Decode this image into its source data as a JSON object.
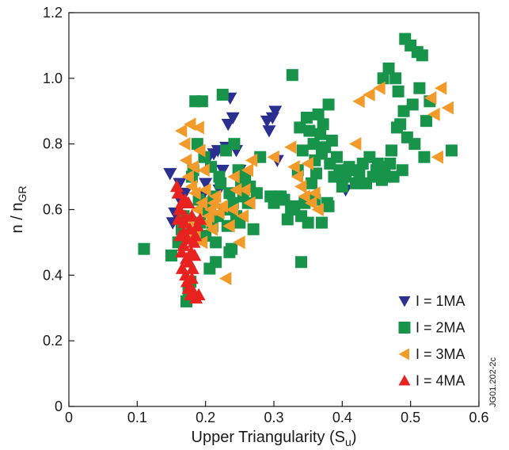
{
  "chart_data": {
    "type": "scatter",
    "xlabel": "Upper Triangularity (S",
    "xlabel_sub": "u",
    "xlabel_end": ")",
    "ylabel": "n / n",
    "ylabel_sub": "GR",
    "xlim": [
      0,
      0.6
    ],
    "ylim": [
      0,
      1.2
    ],
    "x_ticks": [
      "0",
      "0.1",
      "0.2",
      "0.3",
      "0.4",
      "0.5",
      "0.6"
    ],
    "y_ticks": [
      "0",
      "0.2",
      "0.4",
      "0.6",
      "0.8",
      "1.0",
      "1.2"
    ],
    "legend_position": "bottom-right",
    "side_label": "JG01.202-2c",
    "grid": false,
    "series": [
      {
        "name": "I = 1MA",
        "marker": "triangle-down",
        "color": "#2b2f8f",
        "points": [
          [
            0.148,
            0.71
          ],
          [
            0.152,
            0.56
          ],
          [
            0.155,
            0.59
          ],
          [
            0.162,
            0.68
          ],
          [
            0.165,
            0.62
          ],
          [
            0.17,
            0.65
          ],
          [
            0.195,
            0.64
          ],
          [
            0.2,
            0.68
          ],
          [
            0.205,
            0.76
          ],
          [
            0.212,
            0.77
          ],
          [
            0.218,
            0.78
          ],
          [
            0.22,
            0.66
          ],
          [
            0.225,
            0.72
          ],
          [
            0.23,
            0.79
          ],
          [
            0.233,
            0.86
          ],
          [
            0.236,
            0.94
          ],
          [
            0.24,
            0.88
          ],
          [
            0.245,
            0.78
          ],
          [
            0.25,
            0.72
          ],
          [
            0.255,
            0.65
          ],
          [
            0.29,
            0.87
          ],
          [
            0.293,
            0.84
          ],
          [
            0.298,
            0.88
          ],
          [
            0.302,
            0.9
          ],
          [
            0.305,
            0.75
          ],
          [
            0.405,
            0.66
          ]
        ]
      },
      {
        "name": "I = 2MA",
        "marker": "square",
        "color": "#17944a",
        "points": [
          [
            0.11,
            0.48
          ],
          [
            0.15,
            0.46
          ],
          [
            0.16,
            0.5
          ],
          [
            0.165,
            0.54
          ],
          [
            0.168,
            0.58
          ],
          [
            0.172,
            0.32
          ],
          [
            0.175,
            0.35
          ],
          [
            0.178,
            0.38
          ],
          [
            0.18,
            0.7
          ],
          [
            0.182,
            0.72
          ],
          [
            0.185,
            0.93
          ],
          [
            0.188,
            0.8
          ],
          [
            0.19,
            0.63
          ],
          [
            0.192,
            0.56
          ],
          [
            0.195,
            0.93
          ],
          [
            0.198,
            0.76
          ],
          [
            0.2,
            0.52
          ],
          [
            0.202,
            0.6
          ],
          [
            0.205,
            0.62
          ],
          [
            0.208,
            0.73
          ],
          [
            0.21,
            0.55
          ],
          [
            0.212,
            0.64
          ],
          [
            0.215,
            0.5
          ],
          [
            0.218,
            0.58
          ],
          [
            0.22,
            0.7
          ],
          [
            0.222,
            0.68
          ],
          [
            0.225,
            0.95
          ],
          [
            0.228,
            0.6
          ],
          [
            0.23,
            0.78
          ],
          [
            0.232,
            0.55
          ],
          [
            0.235,
            0.65
          ],
          [
            0.238,
            0.48
          ],
          [
            0.24,
            0.62
          ],
          [
            0.242,
            0.8
          ],
          [
            0.245,
            0.58
          ],
          [
            0.248,
            0.72
          ],
          [
            0.25,
            0.56
          ],
          [
            0.252,
            0.68
          ],
          [
            0.255,
            0.64
          ],
          [
            0.258,
            0.7
          ],
          [
            0.262,
            0.62
          ],
          [
            0.265,
            0.67
          ],
          [
            0.27,
            0.54
          ],
          [
            0.275,
            0.65
          ],
          [
            0.28,
            0.76
          ],
          [
            0.295,
            0.64
          ],
          [
            0.3,
            0.62
          ],
          [
            0.305,
            0.64
          ],
          [
            0.31,
            0.64
          ],
          [
            0.315,
            0.63
          ],
          [
            0.32,
            0.57
          ],
          [
            0.325,
            0.6
          ],
          [
            0.33,
            0.61
          ],
          [
            0.335,
            0.72
          ],
          [
            0.338,
            0.85
          ],
          [
            0.34,
            0.44
          ],
          [
            0.342,
            0.78
          ],
          [
            0.345,
            0.62
          ],
          [
            0.348,
            0.88
          ],
          [
            0.35,
            0.56
          ],
          [
            0.352,
            0.84
          ],
          [
            0.355,
            0.68
          ],
          [
            0.358,
            0.8
          ],
          [
            0.36,
            0.75
          ],
          [
            0.362,
            0.71
          ],
          [
            0.365,
            0.89
          ],
          [
            0.368,
            0.83
          ],
          [
            0.37,
            0.77
          ],
          [
            0.372,
            0.86
          ],
          [
            0.375,
            0.79
          ],
          [
            0.378,
            0.62
          ],
          [
            0.38,
            0.92
          ],
          [
            0.382,
            0.74
          ],
          [
            0.385,
            0.81
          ],
          [
            0.388,
            0.7
          ],
          [
            0.392,
            0.76
          ],
          [
            0.396,
            0.72
          ],
          [
            0.4,
            0.67
          ],
          [
            0.405,
            0.7
          ],
          [
            0.41,
            0.73
          ],
          [
            0.415,
            0.72
          ],
          [
            0.42,
            0.68
          ],
          [
            0.425,
            0.71
          ],
          [
            0.43,
            0.74
          ],
          [
            0.435,
            0.68
          ],
          [
            0.44,
            0.76
          ],
          [
            0.445,
            0.7
          ],
          [
            0.45,
            0.72
          ],
          [
            0.452,
            0.74
          ],
          [
            0.455,
            0.71
          ],
          [
            0.458,
            0.69
          ],
          [
            0.46,
            1.0
          ],
          [
            0.462,
            0.73
          ],
          [
            0.465,
            0.7
          ],
          [
            0.468,
            1.03
          ],
          [
            0.47,
            0.74
          ],
          [
            0.472,
            0.78
          ],
          [
            0.475,
            0.7
          ],
          [
            0.478,
            1.0
          ],
          [
            0.48,
            0.85
          ],
          [
            0.482,
            0.96
          ],
          [
            0.485,
            0.86
          ],
          [
            0.488,
            0.72
          ],
          [
            0.49,
            0.9
          ],
          [
            0.495,
            0.82
          ],
          [
            0.5,
            1.1
          ],
          [
            0.503,
            0.92
          ],
          [
            0.506,
            0.8
          ],
          [
            0.51,
            1.08
          ],
          [
            0.513,
            0.97
          ],
          [
            0.517,
            1.07
          ],
          [
            0.52,
            0.76
          ],
          [
            0.523,
            0.87
          ],
          [
            0.528,
            0.93
          ],
          [
            0.56,
            0.78
          ],
          [
            0.38,
            0.61
          ],
          [
            0.327,
            1.01
          ],
          [
            0.492,
            1.12
          ],
          [
            0.206,
            0.42
          ],
          [
            0.215,
            0.44
          ],
          [
            0.235,
            0.47
          ],
          [
            0.34,
            0.58
          ],
          [
            0.36,
            0.63
          ],
          [
            0.37,
            0.56
          ]
        ]
      },
      {
        "name": "I = 3MA",
        "marker": "triangle-left",
        "color": "#f39b2a",
        "points": [
          [
            0.165,
            0.84
          ],
          [
            0.17,
            0.8
          ],
          [
            0.172,
            0.75
          ],
          [
            0.175,
            0.7
          ],
          [
            0.178,
            0.86
          ],
          [
            0.18,
            0.67
          ],
          [
            0.182,
            0.73
          ],
          [
            0.185,
            0.65
          ],
          [
            0.188,
            0.6
          ],
          [
            0.19,
            0.85
          ],
          [
            0.192,
            0.78
          ],
          [
            0.195,
            0.62
          ],
          [
            0.198,
            0.72
          ],
          [
            0.2,
            0.66
          ],
          [
            0.202,
            0.56
          ],
          [
            0.205,
            0.58
          ],
          [
            0.208,
            0.6
          ],
          [
            0.21,
            0.54
          ],
          [
            0.212,
            0.62
          ],
          [
            0.215,
            0.64
          ],
          [
            0.22,
            0.59
          ],
          [
            0.225,
            0.61
          ],
          [
            0.23,
            0.39
          ],
          [
            0.235,
            0.55
          ],
          [
            0.24,
            0.6
          ],
          [
            0.242,
            0.7
          ],
          [
            0.245,
            0.66
          ],
          [
            0.25,
            0.5
          ],
          [
            0.255,
            0.58
          ],
          [
            0.258,
            0.66
          ],
          [
            0.262,
            0.72
          ],
          [
            0.265,
            0.62
          ],
          [
            0.268,
            0.75
          ],
          [
            0.3,
            0.76
          ],
          [
            0.325,
            0.79
          ],
          [
            0.33,
            0.73
          ],
          [
            0.335,
            0.7
          ],
          [
            0.34,
            0.67
          ],
          [
            0.345,
            0.64
          ],
          [
            0.35,
            0.74
          ],
          [
            0.355,
            0.62
          ],
          [
            0.36,
            0.65
          ],
          [
            0.365,
            0.6
          ],
          [
            0.42,
            0.8
          ],
          [
            0.425,
            0.93
          ],
          [
            0.44,
            0.95
          ],
          [
            0.455,
            0.97
          ],
          [
            0.53,
            0.94
          ],
          [
            0.535,
            0.89
          ],
          [
            0.54,
            0.76
          ],
          [
            0.545,
            0.97
          ],
          [
            0.555,
            0.91
          ],
          [
            0.175,
            0.55
          ],
          [
            0.185,
            0.52
          ],
          [
            0.195,
            0.5
          ]
        ]
      },
      {
        "name": "I = 4MA",
        "marker": "triangle-up",
        "color": "#e8221f",
        "points": [
          [
            0.158,
            0.67
          ],
          [
            0.16,
            0.65
          ],
          [
            0.162,
            0.6
          ],
          [
            0.163,
            0.52
          ],
          [
            0.165,
            0.47
          ],
          [
            0.166,
            0.42
          ],
          [
            0.168,
            0.49
          ],
          [
            0.169,
            0.56
          ],
          [
            0.17,
            0.63
          ],
          [
            0.171,
            0.4
          ],
          [
            0.172,
            0.45
          ],
          [
            0.173,
            0.38
          ],
          [
            0.174,
            0.51
          ],
          [
            0.175,
            0.36
          ],
          [
            0.176,
            0.44
          ],
          [
            0.177,
            0.54
          ],
          [
            0.178,
            0.34
          ],
          [
            0.179,
            0.47
          ],
          [
            0.18,
            0.58
          ],
          [
            0.181,
            0.42
          ],
          [
            0.182,
            0.35
          ],
          [
            0.183,
            0.5
          ],
          [
            0.184,
            0.46
          ],
          [
            0.185,
            0.52
          ],
          [
            0.186,
            0.33
          ],
          [
            0.188,
            0.55
          ],
          [
            0.19,
            0.34
          ],
          [
            0.192,
            0.57
          ],
          [
            0.175,
            0.62
          ],
          [
            0.17,
            0.58
          ],
          [
            0.168,
            0.53
          ],
          [
            0.18,
            0.39
          ],
          [
            0.165,
            0.62
          ],
          [
            0.16,
            0.57
          ]
        ]
      }
    ]
  }
}
